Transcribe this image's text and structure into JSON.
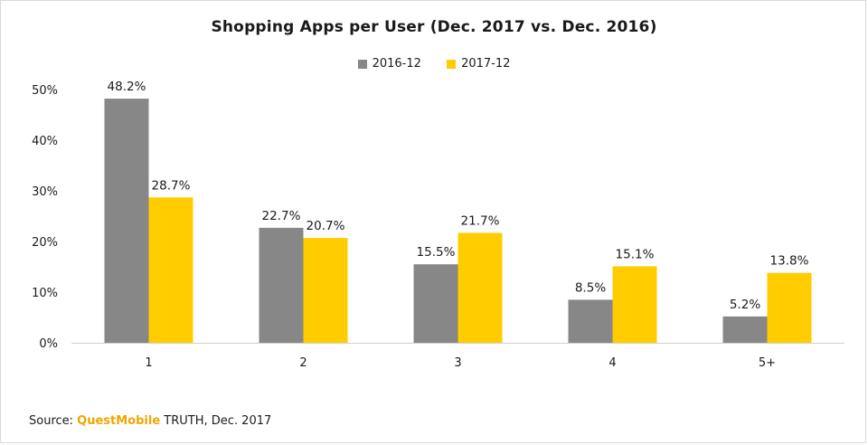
{
  "chart_data": {
    "type": "bar",
    "title": "Shopping Apps per User (Dec. 2017 vs. Dec. 2016)",
    "categories": [
      "1",
      "2",
      "3",
      "4",
      "5+"
    ],
    "series": [
      {
        "name": "2016-12",
        "values": [
          48.2,
          22.7,
          15.5,
          8.5,
          5.2
        ],
        "labels": [
          "48.2%",
          "22.7%",
          "15.5%",
          "8.5%",
          "5.2%"
        ],
        "color": "#878787"
      },
      {
        "name": "2017-12",
        "values": [
          28.7,
          20.7,
          21.7,
          15.1,
          13.8
        ],
        "labels": [
          "28.7%",
          "20.7%",
          "21.7%",
          "15.1%",
          "13.8%"
        ],
        "color": "#ffcc00"
      }
    ],
    "ylim": [
      0,
      50
    ],
    "yticks": [
      "0%",
      "10%",
      "20%",
      "30%",
      "40%",
      "50%"
    ],
    "ytick_values": [
      0,
      10,
      20,
      30,
      40,
      50
    ],
    "grid": false,
    "legend_position": "top"
  },
  "source": {
    "prefix": "Source: ",
    "brand": "QuestMobile",
    "suffix": " TRUTH, Dec. 2017"
  }
}
